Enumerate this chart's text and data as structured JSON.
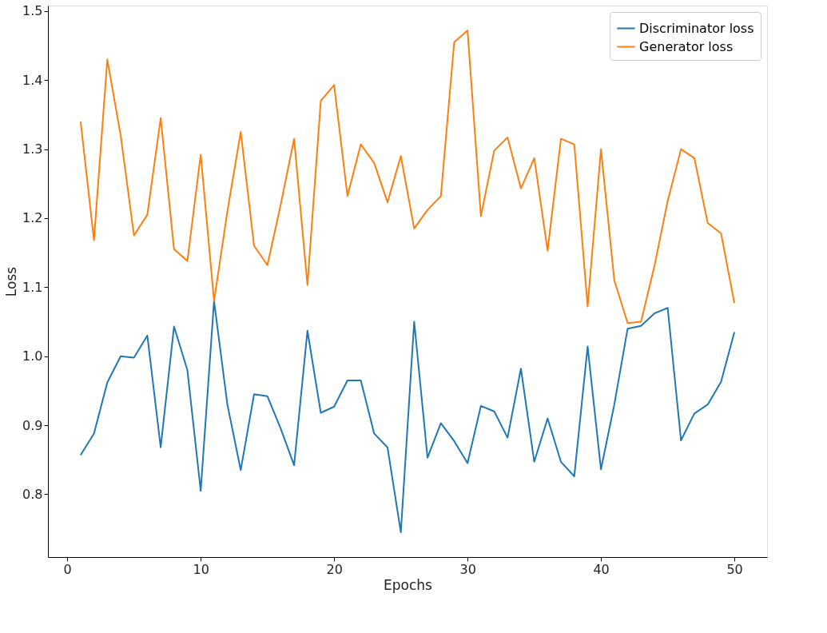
{
  "chart_data": {
    "type": "line",
    "xlabel": "Epochs",
    "ylabel": "Loss",
    "x": [
      1,
      2,
      3,
      4,
      5,
      6,
      7,
      8,
      9,
      10,
      11,
      12,
      13,
      14,
      15,
      16,
      17,
      18,
      19,
      20,
      21,
      22,
      23,
      24,
      25,
      26,
      27,
      28,
      29,
      30,
      31,
      32,
      33,
      34,
      35,
      36,
      37,
      38,
      39,
      40,
      41,
      42,
      43,
      44,
      45,
      46,
      47,
      48,
      49,
      50
    ],
    "series": [
      {
        "name": "Discriminator loss",
        "color": "#1f77b4",
        "values": [
          0.857,
          0.888,
          0.962,
          1.0,
          0.998,
          1.03,
          0.868,
          1.043,
          0.98,
          0.805,
          1.08,
          0.93,
          0.835,
          0.945,
          0.942,
          0.895,
          0.842,
          1.037,
          0.918,
          0.927,
          0.965,
          0.965,
          0.888,
          0.868,
          0.745,
          1.05,
          0.853,
          0.903,
          0.877,
          0.845,
          0.928,
          0.92,
          0.882,
          0.982,
          0.847,
          0.91,
          0.847,
          0.826,
          1.014,
          0.836,
          0.93,
          1.04,
          1.044,
          1.062,
          1.07,
          0.878,
          0.917,
          0.93,
          0.963,
          1.035
        ]
      },
      {
        "name": "Generator loss",
        "color": "#ff7f0e",
        "values": [
          1.34,
          1.168,
          1.43,
          1.32,
          1.175,
          1.205,
          1.345,
          1.155,
          1.138,
          1.292,
          1.08,
          1.21,
          1.325,
          1.16,
          1.132,
          1.22,
          1.315,
          1.103,
          1.37,
          1.393,
          1.232,
          1.307,
          1.28,
          1.223,
          1.29,
          1.185,
          1.212,
          1.232,
          1.455,
          1.472,
          1.203,
          1.298,
          1.317,
          1.243,
          1.287,
          1.153,
          1.315,
          1.307,
          1.072,
          1.3,
          1.11,
          1.048,
          1.05,
          1.13,
          1.225,
          1.3,
          1.287,
          1.193,
          1.178,
          1.077
        ]
      }
    ],
    "xlim": [
      -1.45,
      52.45
    ],
    "xticks": [
      0,
      10,
      20,
      30,
      40,
      50
    ],
    "ylim": [
      0.709,
      1.508
    ],
    "yticks": [
      0.8,
      0.9,
      {
        "value": 1.0,
        "label": "1.0"
      },
      1.1,
      1.2,
      1.3,
      1.4,
      1.5
    ],
    "grid": false,
    "legend": "top right"
  }
}
